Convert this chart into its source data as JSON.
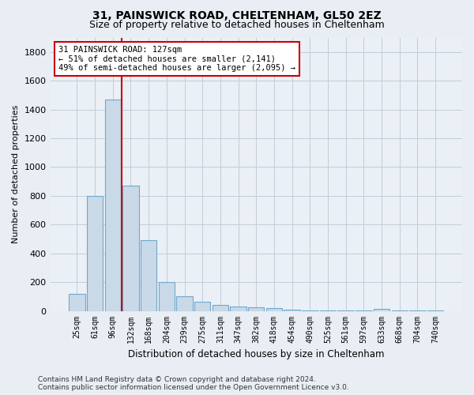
{
  "title1": "31, PAINSWICK ROAD, CHELTENHAM, GL50 2EZ",
  "title2": "Size of property relative to detached houses in Cheltenham",
  "xlabel": "Distribution of detached houses by size in Cheltenham",
  "ylabel": "Number of detached properties",
  "categories": [
    "25sqm",
    "61sqm",
    "96sqm",
    "132sqm",
    "168sqm",
    "204sqm",
    "239sqm",
    "275sqm",
    "311sqm",
    "347sqm",
    "382sqm",
    "418sqm",
    "454sqm",
    "490sqm",
    "525sqm",
    "561sqm",
    "597sqm",
    "633sqm",
    "668sqm",
    "704sqm",
    "740sqm"
  ],
  "values": [
    120,
    800,
    1470,
    870,
    490,
    200,
    100,
    65,
    42,
    30,
    25,
    18,
    8,
    5,
    4,
    3,
    2,
    15,
    2,
    1,
    1
  ],
  "bar_color": "#c9d9e8",
  "bar_edge_color": "#6ea8ce",
  "vline_x_idx": 2.5,
  "vline_color": "#cc0000",
  "annotation_text": "31 PAINSWICK ROAD: 127sqm\n← 51% of detached houses are smaller (2,141)\n49% of semi-detached houses are larger (2,095) →",
  "annotation_box_facecolor": "#ffffff",
  "annotation_box_edgecolor": "#cc0000",
  "ylim": [
    0,
    1900
  ],
  "yticks": [
    0,
    200,
    400,
    600,
    800,
    1000,
    1200,
    1400,
    1600,
    1800
  ],
  "footer": "Contains HM Land Registry data © Crown copyright and database right 2024.\nContains public sector information licensed under the Open Government Licence v3.0.",
  "fig_facecolor": "#e8eef4",
  "plot_facecolor": "#eaf0f6",
  "grid_color": "#c0cdd8",
  "title1_fontsize": 10,
  "title2_fontsize": 9,
  "xlabel_fontsize": 8.5,
  "ylabel_fontsize": 8,
  "tick_fontsize": 8,
  "xtick_fontsize": 7,
  "footer_fontsize": 6.5
}
